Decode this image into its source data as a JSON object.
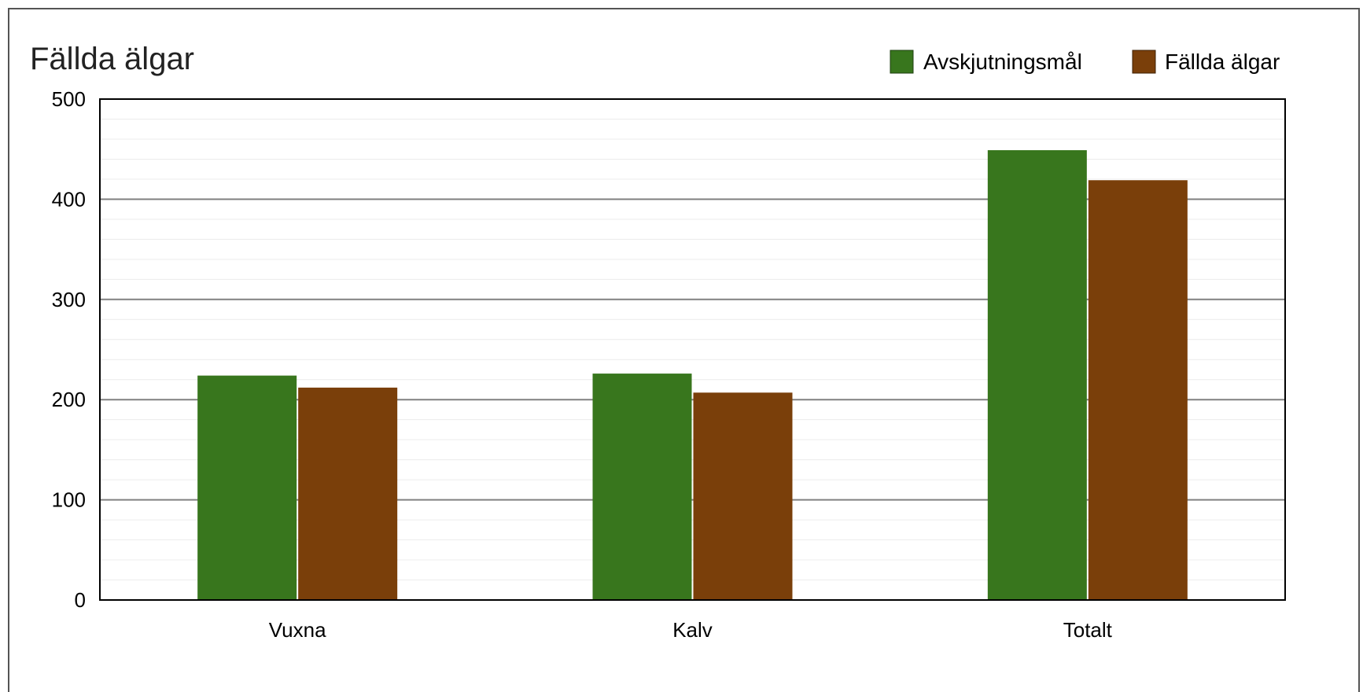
{
  "chart_data": {
    "type": "bar",
    "title": "Fällda älgar",
    "categories": [
      "Vuxna",
      "Kalv",
      "Totalt"
    ],
    "series": [
      {
        "name": "Avskjutningsmål",
        "values": [
          224,
          226,
          449
        ],
        "color": "#38761d"
      },
      {
        "name": "Fällda älgar",
        "values": [
          212,
          207,
          419
        ],
        "color": "#7a3f0a"
      }
    ],
    "yticks": [
      "0",
      "100",
      "200",
      "300",
      "400",
      "500"
    ],
    "ylim": [
      0,
      500
    ],
    "grid": true,
    "legend_position": "top-right"
  }
}
